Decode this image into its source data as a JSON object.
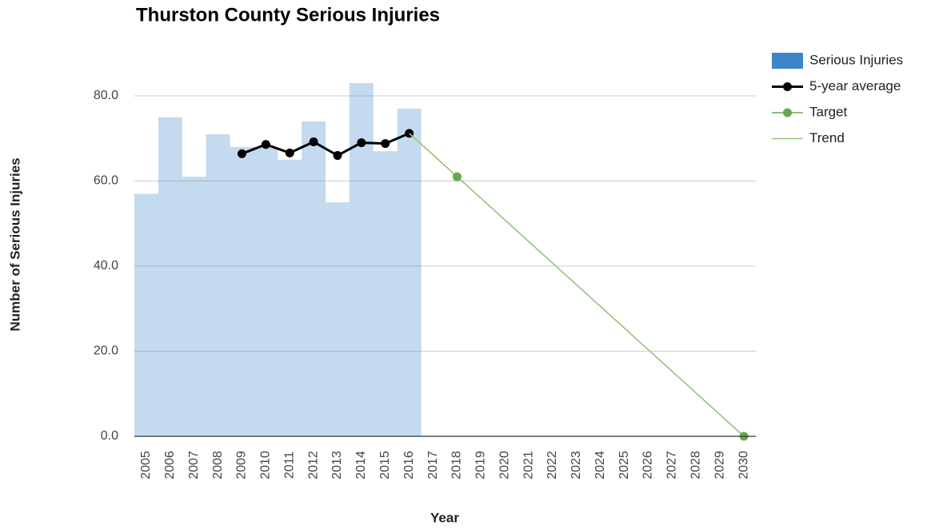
{
  "chart_data": {
    "type": "bar",
    "title": "Thurston County Serious Injuries",
    "x_label": "Year",
    "y_label": "Number of Serious Injuries",
    "x": [
      2005,
      2006,
      2007,
      2008,
      2009,
      2010,
      2011,
      2012,
      2013,
      2014,
      2015,
      2016,
      2017,
      2018,
      2019,
      2020,
      2021,
      2022,
      2023,
      2024,
      2025,
      2026,
      2027,
      2028,
      2029,
      2030
    ],
    "series": [
      {
        "name": "Serious Injuries",
        "type": "bar",
        "color": "#3d85c6",
        "values": [
          57,
          75,
          61,
          71,
          68,
          68,
          65,
          74,
          55,
          83,
          67,
          77,
          null,
          null,
          null,
          null,
          null,
          null,
          null,
          null,
          null,
          null,
          null,
          null,
          null,
          null
        ]
      },
      {
        "name": "5-year average",
        "type": "line",
        "color": "#000000",
        "values": [
          null,
          null,
          null,
          null,
          66.4,
          68.6,
          66.6,
          69.2,
          66,
          69,
          68.8,
          71.2,
          null,
          null,
          null,
          null,
          null,
          null,
          null,
          null,
          null,
          null,
          null,
          null,
          null,
          null
        ]
      },
      {
        "name": "Target",
        "type": "scatter",
        "color": "#6aa84f",
        "x": [
          2018,
          2030
        ],
        "values": [
          61,
          0
        ]
      },
      {
        "name": "Trend",
        "type": "line",
        "color": "#93c47d",
        "x": [
          2016,
          2030
        ],
        "values": [
          71.2,
          0
        ]
      }
    ],
    "ylim": [
      0,
      85
    ],
    "yticks": [
      {
        "value": 0,
        "label": "0.0"
      },
      {
        "value": 20,
        "label": "20.0"
      },
      {
        "value": 40,
        "label": "40.0"
      },
      {
        "value": 60,
        "label": "60.0"
      },
      {
        "value": 80,
        "label": "80.0"
      }
    ],
    "grid": true,
    "legend": "right"
  }
}
